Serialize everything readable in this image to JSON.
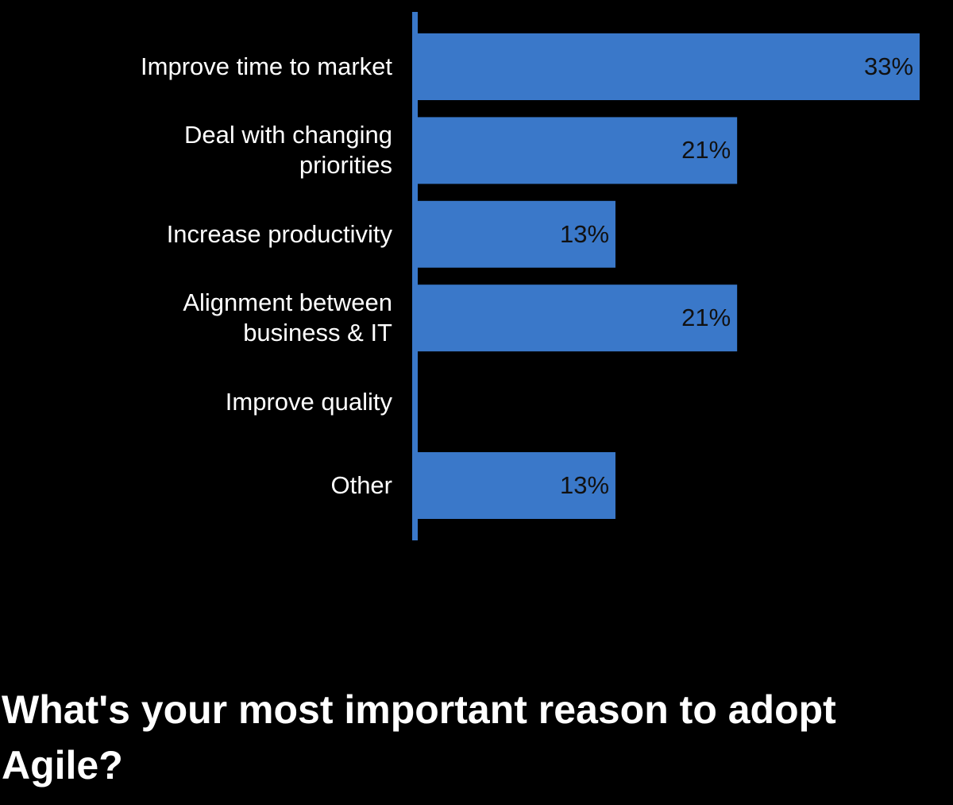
{
  "chart_data": {
    "type": "hbar",
    "title": "What's your most important reason to adopt Agile?",
    "categories": [
      "Improve time to market",
      "Deal with changing priorities",
      "Increase productivity",
      "Alignment between business & IT",
      "Improve quality",
      "Other"
    ],
    "values": [
      33,
      21,
      13,
      21,
      0,
      13
    ],
    "value_labels": [
      "33%",
      "21%",
      "13%",
      "21%",
      null,
      "13%"
    ],
    "color": "#3a78c9"
  }
}
